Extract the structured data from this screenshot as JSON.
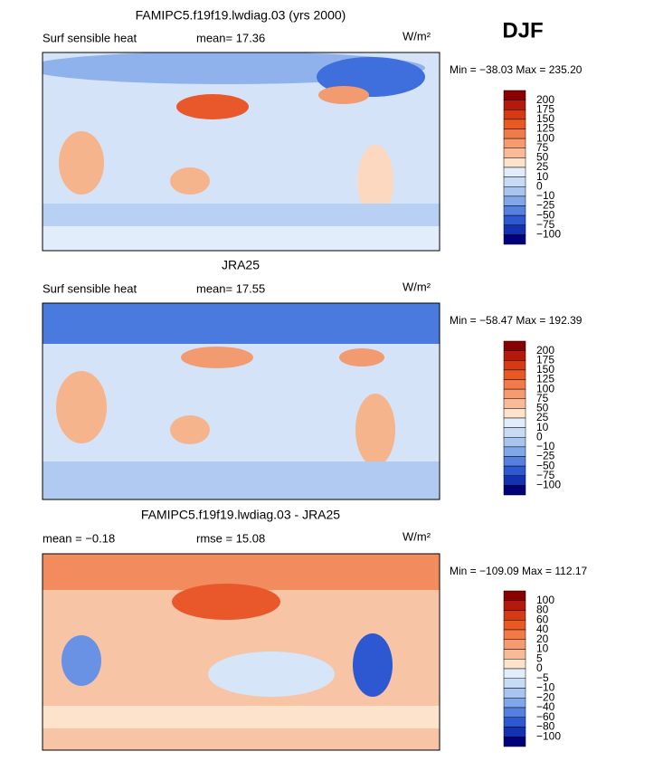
{
  "header": {
    "season": "DJF"
  },
  "panels": [
    {
      "title": "FAMIPC5.f19f19.lwdiag.03 (yrs 2000)",
      "left_label": "Surf sensible heat",
      "stats": [
        "mean=  17.36"
      ],
      "units": "W/m²",
      "minmax": "Min = −38.03 Max = 235.20",
      "colorbar": {
        "labels": [
          "200",
          "175",
          "150",
          "125",
          "100",
          "75",
          "50",
          "25",
          "10",
          "0",
          "−10",
          "−25",
          "−50",
          "−75",
          "−100"
        ],
        "colors": [
          "#8b0000",
          "#b41a0c",
          "#d53a14",
          "#e85a22",
          "#f27a48",
          "#f69b70",
          "#f9ba98",
          "#fde2cc",
          "#e2edfb",
          "#c7dbf5",
          "#a8c5f0",
          "#80a7ea",
          "#5580e0",
          "#2e58d2",
          "#1232b2",
          "#00007a"
        ]
      }
    },
    {
      "title": "JRA25",
      "left_label": "Surf sensible heat",
      "stats": [
        "mean=  17.55"
      ],
      "units": "W/m²",
      "minmax": "Min = −58.47 Max = 192.39",
      "colorbar": {
        "labels": [
          "200",
          "175",
          "150",
          "125",
          "100",
          "75",
          "50",
          "25",
          "10",
          "0",
          "−10",
          "−25",
          "−50",
          "−75",
          "−100"
        ],
        "colors": [
          "#8b0000",
          "#b41a0c",
          "#d53a14",
          "#e85a22",
          "#f27a48",
          "#f69b70",
          "#f9ba98",
          "#fde2cc",
          "#e2edfb",
          "#c7dbf5",
          "#a8c5f0",
          "#80a7ea",
          "#5580e0",
          "#2e58d2",
          "#1232b2",
          "#00007a"
        ]
      }
    },
    {
      "title": "FAMIPC5.f19f19.lwdiag.03 - JRA25",
      "stats": [
        "mean =  −0.18",
        "rmse =  15.08"
      ],
      "units": "W/m²",
      "minmax": "Min = −109.09 Max = 112.17",
      "colorbar": {
        "labels": [
          "100",
          "80",
          "60",
          "40",
          "20",
          "10",
          "5",
          "0",
          "−5",
          "−10",
          "−20",
          "−40",
          "−60",
          "−80",
          "−100"
        ],
        "colors": [
          "#8b0000",
          "#b41a0c",
          "#d53a14",
          "#e85a22",
          "#f27a48",
          "#f69b70",
          "#f9ba98",
          "#fde2cc",
          "#e2edfb",
          "#c7dbf5",
          "#a8c5f0",
          "#80a7ea",
          "#5580e0",
          "#2e58d2",
          "#1232b2",
          "#00007a"
        ]
      }
    }
  ]
}
